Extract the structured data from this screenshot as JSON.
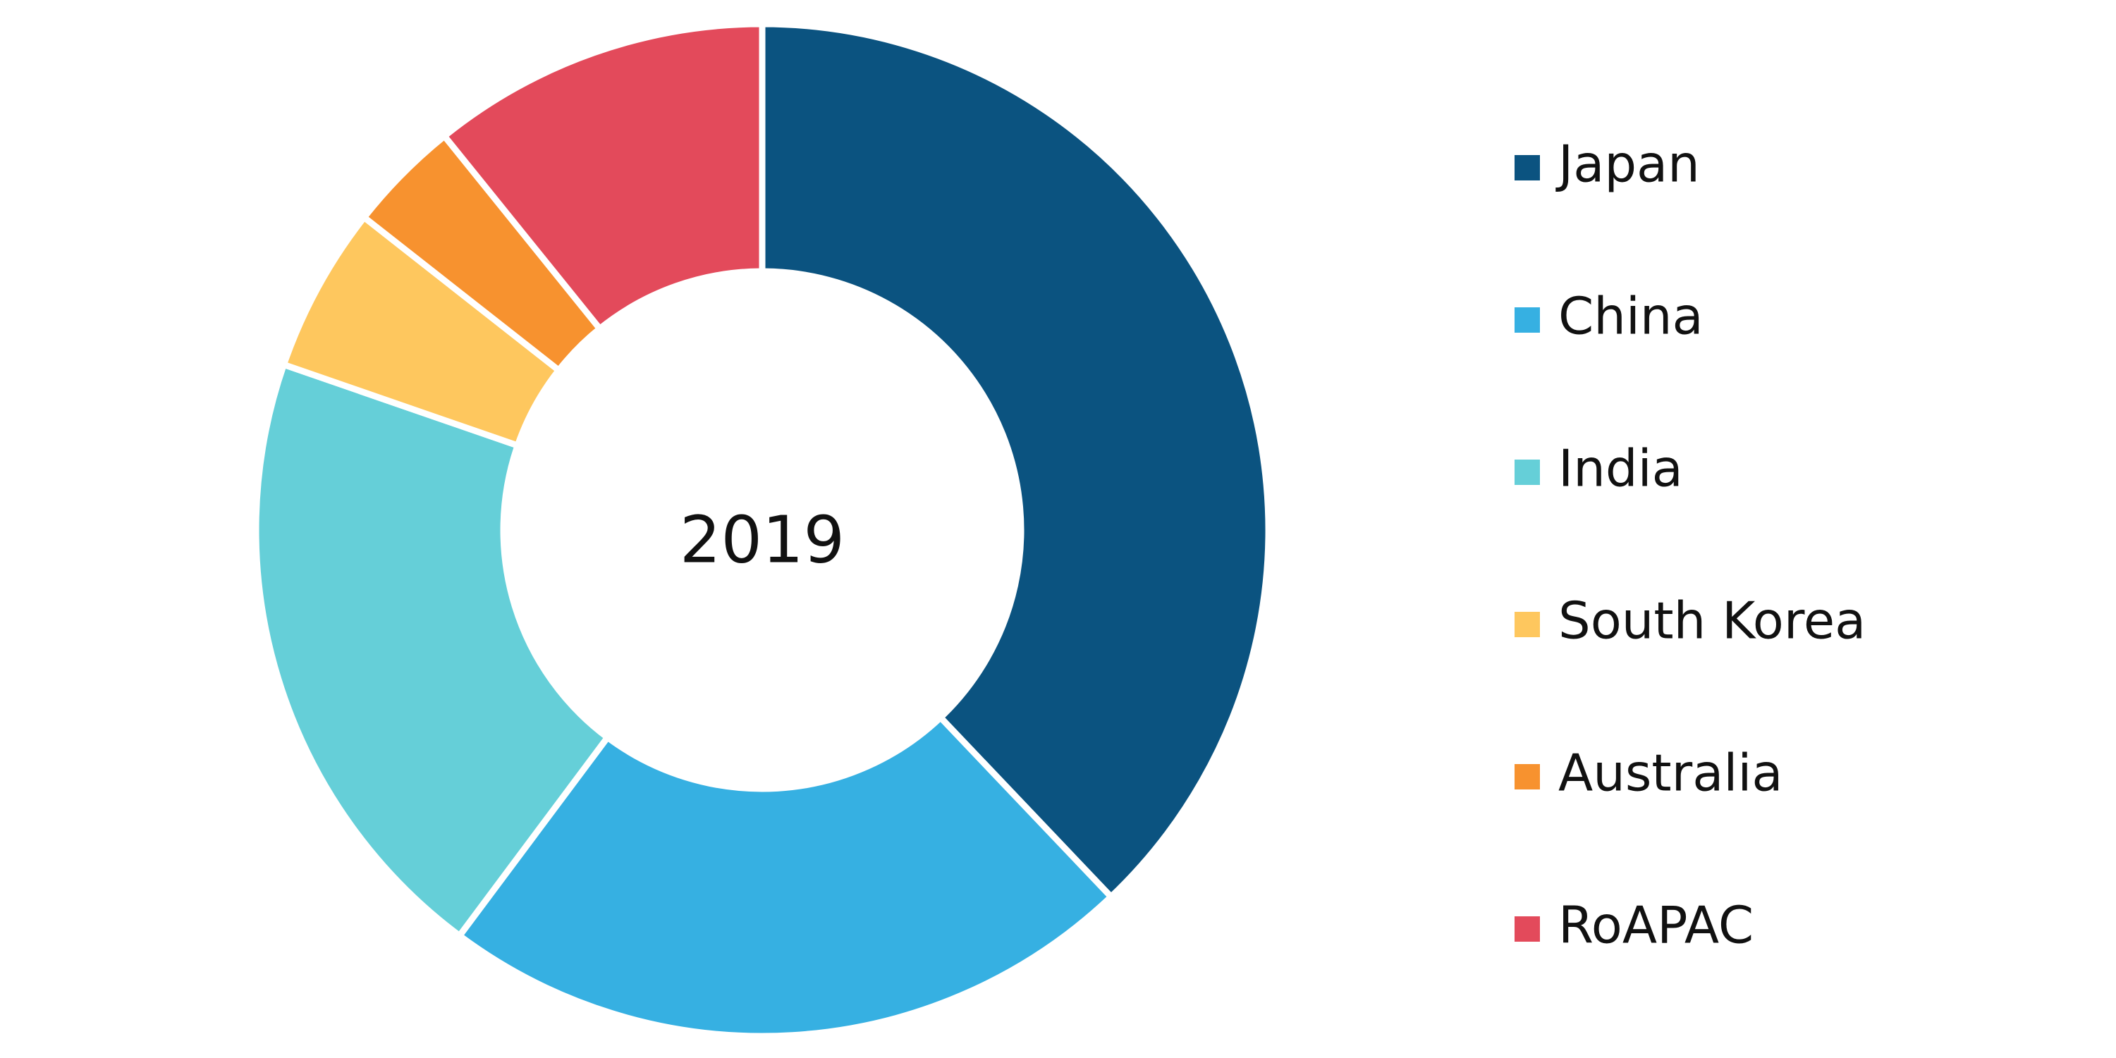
{
  "chart_data": {
    "type": "donut",
    "center_label": "2019",
    "categories": [
      "Japan",
      "China",
      "India",
      "South Korea",
      "Australia",
      "RoAPAC"
    ],
    "values": [
      37.9,
      22.3,
      20.1,
      5.3,
      3.6,
      10.8
    ],
    "colors": [
      "#0b5380",
      "#36b0e2",
      "#65cfd8",
      "#fec75e",
      "#f7922f",
      "#e34a5b"
    ],
    "legend": "right"
  }
}
